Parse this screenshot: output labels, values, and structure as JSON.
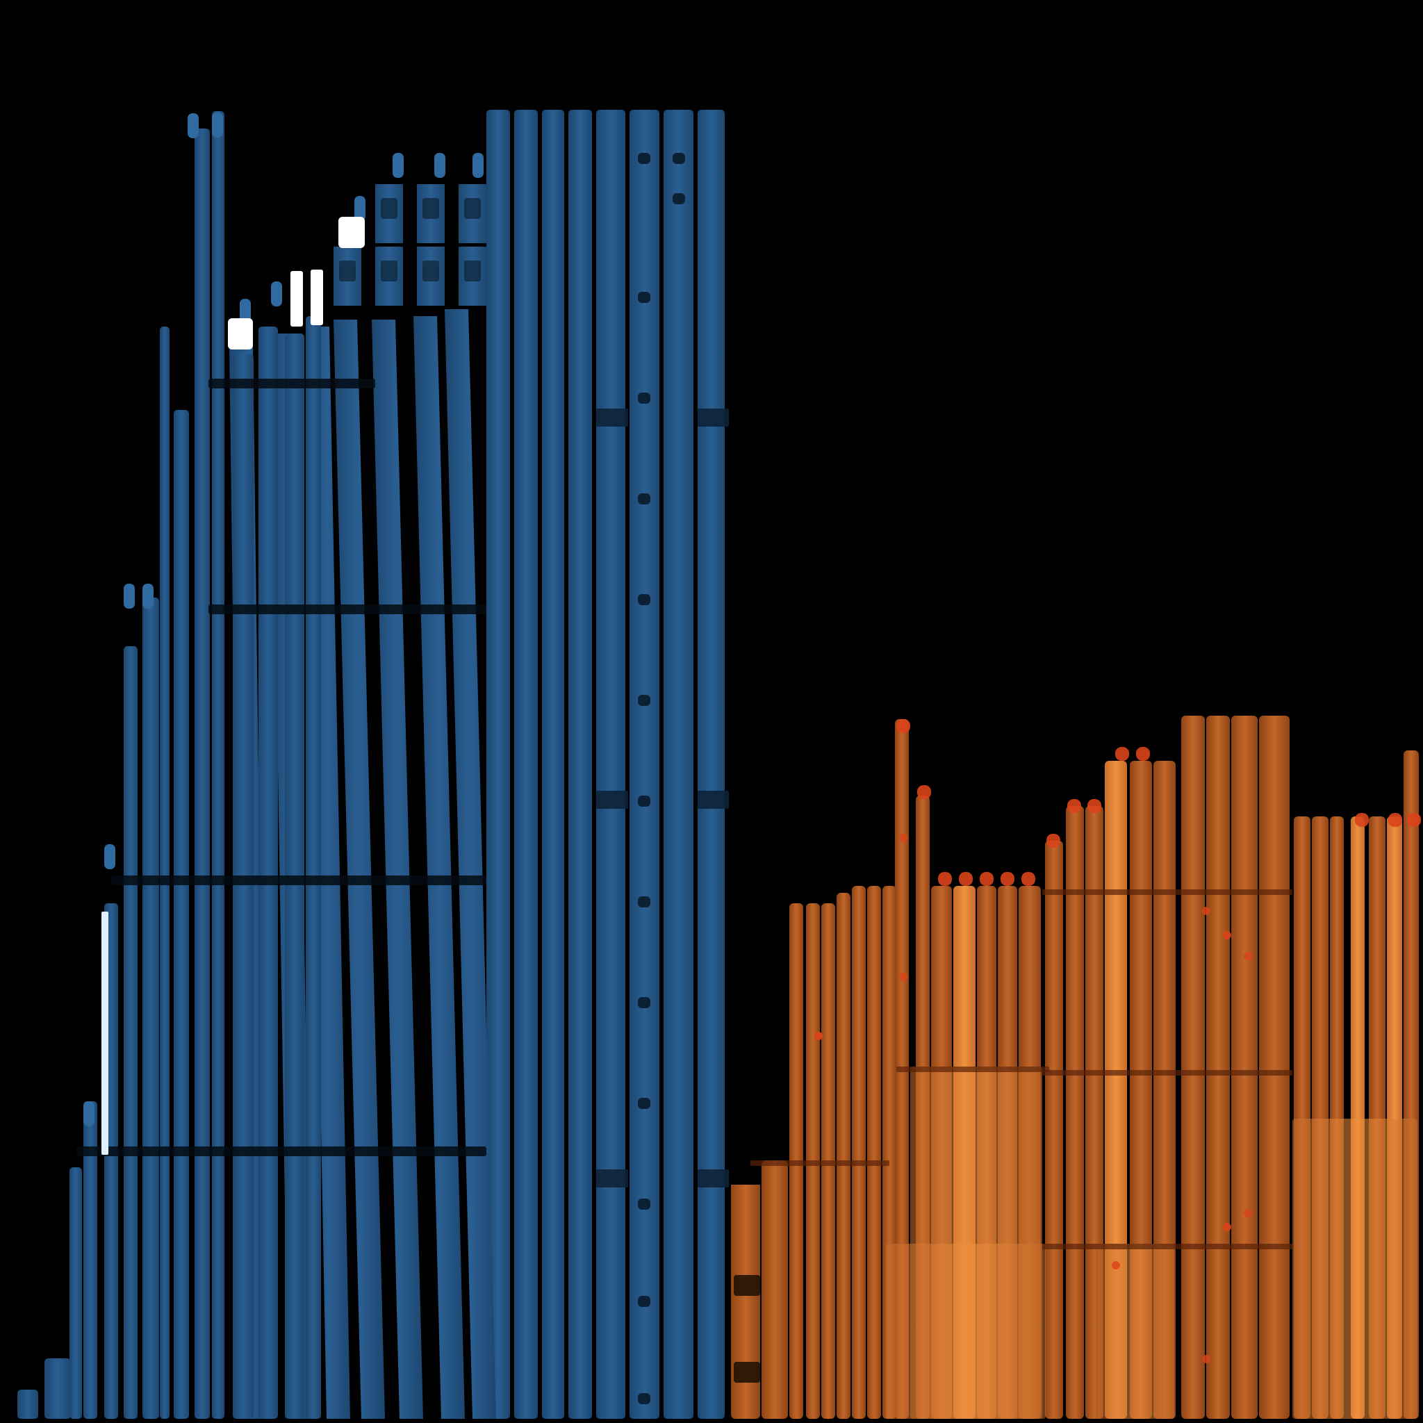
{
  "scene": {
    "description_free": true,
    "background_color": "#000000",
    "colors": {
      "blue_base": "#22527f",
      "blue_light": "#2f6aa0",
      "blue_dark": "#0d2438",
      "white_block": "#ffffff",
      "orange_base": "#a8531f",
      "orange_light": "#e8843b",
      "orange_dark": "#7a3410",
      "red_accent": "#d9441a"
    }
  }
}
